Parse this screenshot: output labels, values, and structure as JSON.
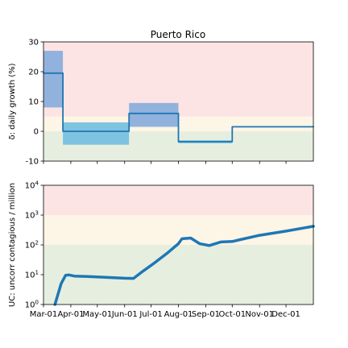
{
  "chart_data": [
    {
      "type": "line",
      "title": "Puerto Rico",
      "ylabel": "δ: daily growth (%)",
      "ylim": [
        -10,
        30
      ],
      "yticks": [
        -10,
        0,
        10,
        20,
        30
      ],
      "xlim": [
        "2020-03-01",
        "2021-01-01"
      ],
      "grid": false,
      "bands": [
        {
          "from": -10,
          "to": 0,
          "color": "#e6efdf"
        },
        {
          "from": 0,
          "to": 5,
          "color": "#fdf5e6"
        },
        {
          "from": 5,
          "to": 30,
          "color": "#fce4e4"
        }
      ],
      "ranges": [
        {
          "x0": "2020-03-01",
          "x1": "2020-03-23",
          "low": 8,
          "high": 27,
          "color": "#91b2dc"
        },
        {
          "x0": "2020-03-23",
          "x1": "2020-06-06",
          "low": -4.5,
          "high": 3,
          "color": "#7ec3e0"
        },
        {
          "x0": "2020-06-06",
          "x1": "2020-08-01",
          "low": 1.5,
          "high": 9.5,
          "color": "#91b2dc"
        },
        {
          "x0": "2020-08-01",
          "x1": "2020-10-01",
          "low": -4,
          "high": -3,
          "color": "#7ec3e0"
        }
      ],
      "series": [
        {
          "color": "#1f77b4",
          "step": true,
          "x": [
            "2020-03-01",
            "2020-03-23",
            "2020-06-06",
            "2020-08-01",
            "2020-10-01",
            "2021-01-01"
          ],
          "values": [
            19.5,
            0,
            6,
            -3.5,
            1.5,
            1.5
          ]
        }
      ]
    },
    {
      "type": "line",
      "ylabel": "UC: uncorr contagious / million",
      "yscale": "log",
      "ylim": [
        1,
        10000
      ],
      "yticks": [
        1,
        10,
        100,
        1000,
        10000
      ],
      "ytick_labels": [
        {
          "base": "10",
          "exp": "0"
        },
        {
          "base": "10",
          "exp": "1"
        },
        {
          "base": "10",
          "exp": "2"
        },
        {
          "base": "10",
          "exp": "3"
        },
        {
          "base": "10",
          "exp": "4"
        }
      ],
      "xlim": [
        "2020-03-01",
        "2021-01-01"
      ],
      "xticks": [
        "2020-03-01",
        "2020-04-01",
        "2020-05-01",
        "2020-06-01",
        "2020-07-01",
        "2020-08-01",
        "2020-09-01",
        "2020-10-01",
        "2020-11-01",
        "2020-12-01"
      ],
      "xtick_labels": [
        "Mar-01",
        "Apr-01",
        "May-01",
        "Jun-01",
        "Jul-01",
        "Aug-01",
        "Sep-01",
        "Oct-01",
        "Nov-01",
        "Dec-01"
      ],
      "grid": false,
      "bands": [
        {
          "from": 1,
          "to": 100,
          "color": "#e6efdf"
        },
        {
          "from": 100,
          "to": 1000,
          "color": "#fdf5e6"
        },
        {
          "from": 1000,
          "to": 10000,
          "color": "#fce4e4"
        }
      ],
      "series": [
        {
          "color": "#1f77b4",
          "x": [
            "2020-03-14",
            "2020-03-21",
            "2020-03-26",
            "2020-03-30",
            "2020-04-05",
            "2020-04-20",
            "2020-05-10",
            "2020-06-01",
            "2020-06-11",
            "2020-06-20",
            "2020-07-05",
            "2020-07-20",
            "2020-08-01",
            "2020-08-05",
            "2020-08-15",
            "2020-08-25",
            "2020-09-05",
            "2020-09-18",
            "2020-10-01",
            "2020-10-10",
            "2020-11-01",
            "2020-12-01",
            "2021-01-01"
          ],
          "values": [
            1,
            5,
            9.5,
            9.8,
            9,
            8.7,
            8.2,
            7.6,
            7.5,
            12,
            25,
            55,
            110,
            160,
            170,
            110,
            95,
            125,
            130,
            150,
            210,
            290,
            420
          ]
        }
      ]
    }
  ]
}
